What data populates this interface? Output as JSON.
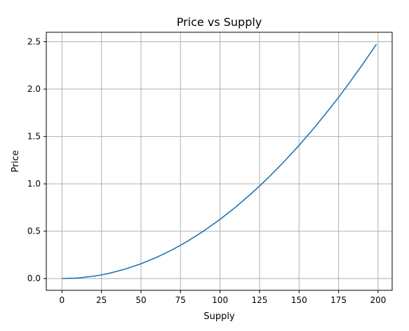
{
  "chart_data": {
    "type": "line",
    "title": "Price vs Supply",
    "xlabel": "Supply",
    "ylabel": "Price",
    "xlim": [
      -9.9,
      208.9
    ],
    "ylim": [
      -0.124,
      2.6
    ],
    "xticks": [
      0,
      25,
      50,
      75,
      100,
      125,
      150,
      175,
      200
    ],
    "yticks": [
      0.0,
      0.5,
      1.0,
      1.5,
      2.0,
      2.5
    ],
    "xtick_labels": [
      "0",
      "25",
      "50",
      "75",
      "100",
      "125",
      "150",
      "175",
      "200"
    ],
    "ytick_labels": [
      "0.0",
      "0.5",
      "1.0",
      "1.5",
      "2.0",
      "2.5"
    ],
    "grid": true,
    "series": [
      {
        "color": "#1f77b4",
        "x": [
          0,
          10,
          20,
          25,
          30,
          40,
          50,
          60,
          70,
          75,
          80,
          90,
          100,
          110,
          120,
          125,
          130,
          140,
          150,
          160,
          170,
          175,
          180,
          190,
          199
        ],
        "y": [
          0.0,
          0.006,
          0.025,
          0.039,
          0.056,
          0.1,
          0.156,
          0.225,
          0.306,
          0.352,
          0.4,
          0.506,
          0.625,
          0.756,
          0.9,
          0.977,
          1.056,
          1.225,
          1.406,
          1.6,
          1.806,
          1.914,
          2.025,
          2.256,
          2.475
        ]
      }
    ]
  }
}
